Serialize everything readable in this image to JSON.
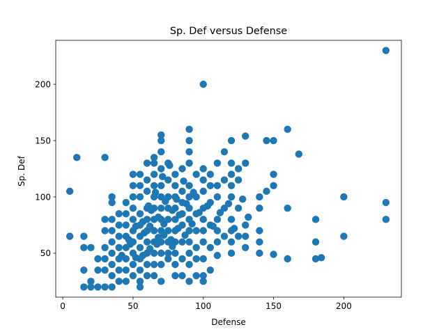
{
  "chart_data": {
    "type": "scatter",
    "title": "Sp. Def versus Defense",
    "xlabel": "Defense",
    "ylabel": "Sp. Def",
    "xlim": [
      -5,
      241
    ],
    "ylim": [
      11,
      239
    ],
    "xticks": [
      0,
      50,
      100,
      150,
      200
    ],
    "yticks": [
      50,
      100,
      150,
      200
    ],
    "xtick_labels": [
      "0",
      "50",
      "100",
      "150",
      "200"
    ],
    "ytick_labels": [
      "50",
      "100",
      "150",
      "200"
    ],
    "grid": false,
    "marker_color": "#1f77b4",
    "points": [
      [
        230,
        230
      ],
      [
        100,
        200
      ],
      [
        230,
        95
      ],
      [
        230,
        80
      ],
      [
        200,
        100
      ],
      [
        200,
        65
      ],
      [
        180,
        80
      ],
      [
        180,
        60
      ],
      [
        180,
        45
      ],
      [
        184,
        46
      ],
      [
        160,
        160
      ],
      [
        168,
        138
      ],
      [
        160,
        90
      ],
      [
        160,
        45
      ],
      [
        150,
        150
      ],
      [
        145,
        150
      ],
      [
        150,
        120
      ],
      [
        150,
        110
      ],
      [
        145,
        105
      ],
      [
        150,
        49
      ],
      [
        140,
        100
      ],
      [
        140,
        90
      ],
      [
        140,
        70
      ],
      [
        140,
        60
      ],
      [
        140,
        50
      ],
      [
        130,
        154
      ],
      [
        130,
        130
      ],
      [
        130,
        75
      ],
      [
        130,
        65
      ],
      [
        130,
        55
      ],
      [
        125,
        125
      ],
      [
        125,
        115
      ],
      [
        125,
        90
      ],
      [
        125,
        65
      ],
      [
        120,
        150
      ],
      [
        120,
        130
      ],
      [
        120,
        120
      ],
      [
        120,
        110
      ],
      [
        120,
        100
      ],
      [
        120,
        80
      ],
      [
        120,
        70
      ],
      [
        120,
        60
      ],
      [
        120,
        50
      ],
      [
        115,
        140
      ],
      [
        115,
        115
      ],
      [
        115,
        90
      ],
      [
        115,
        65
      ],
      [
        110,
        130
      ],
      [
        110,
        110
      ],
      [
        110,
        100
      ],
      [
        110,
        80
      ],
      [
        110,
        70
      ],
      [
        110,
        60
      ],
      [
        110,
        48
      ],
      [
        105,
        120
      ],
      [
        105,
        110
      ],
      [
        105,
        95
      ],
      [
        105,
        75
      ],
      [
        105,
        55
      ],
      [
        105,
        35
      ],
      [
        100,
        125
      ],
      [
        100,
        115
      ],
      [
        100,
        105
      ],
      [
        100,
        90
      ],
      [
        100,
        80
      ],
      [
        100,
        70
      ],
      [
        100,
        60
      ],
      [
        100,
        45
      ],
      [
        100,
        30
      ],
      [
        100,
        25
      ],
      [
        95,
        120
      ],
      [
        95,
        100
      ],
      [
        95,
        85
      ],
      [
        95,
        70
      ],
      [
        95,
        55
      ],
      [
        95,
        45
      ],
      [
        95,
        30
      ],
      [
        90,
        160
      ],
      [
        90,
        150
      ],
      [
        90,
        140
      ],
      [
        90,
        130
      ],
      [
        90,
        110
      ],
      [
        90,
        100
      ],
      [
        90,
        90
      ],
      [
        90,
        80
      ],
      [
        90,
        70
      ],
      [
        90,
        60
      ],
      [
        90,
        50
      ],
      [
        90,
        40
      ],
      [
        90,
        25
      ],
      [
        85,
        125
      ],
      [
        85,
        105
      ],
      [
        85,
        95
      ],
      [
        85,
        85
      ],
      [
        85,
        75
      ],
      [
        85,
        60
      ],
      [
        85,
        45
      ],
      [
        85,
        30
      ],
      [
        80,
        120
      ],
      [
        80,
        110
      ],
      [
        80,
        100
      ],
      [
        80,
        90
      ],
      [
        80,
        80
      ],
      [
        80,
        70
      ],
      [
        80,
        60
      ],
      [
        80,
        50
      ],
      [
        80,
        40
      ],
      [
        80,
        30
      ],
      [
        75,
        130
      ],
      [
        75,
        115
      ],
      [
        75,
        100
      ],
      [
        75,
        90
      ],
      [
        75,
        80
      ],
      [
        75,
        70
      ],
      [
        75,
        60
      ],
      [
        75,
        50
      ],
      [
        75,
        45
      ],
      [
        70,
        155
      ],
      [
        70,
        150
      ],
      [
        70,
        140
      ],
      [
        70,
        125
      ],
      [
        70,
        110
      ],
      [
        70,
        100
      ],
      [
        70,
        90
      ],
      [
        70,
        80
      ],
      [
        70,
        70
      ],
      [
        70,
        60
      ],
      [
        70,
        50
      ],
      [
        70,
        40
      ],
      [
        70,
        25
      ],
      [
        65,
        135
      ],
      [
        65,
        130
      ],
      [
        65,
        120
      ],
      [
        65,
        110
      ],
      [
        65,
        100
      ],
      [
        65,
        90
      ],
      [
        65,
        80
      ],
      [
        65,
        70
      ],
      [
        65,
        60
      ],
      [
        65,
        50
      ],
      [
        65,
        40
      ],
      [
        65,
        30
      ],
      [
        60,
        130
      ],
      [
        60,
        115
      ],
      [
        60,
        105
      ],
      [
        60,
        90
      ],
      [
        60,
        80
      ],
      [
        60,
        70
      ],
      [
        60,
        60
      ],
      [
        60,
        50
      ],
      [
        60,
        40
      ],
      [
        60,
        30
      ],
      [
        55,
        120
      ],
      [
        55,
        110
      ],
      [
        55,
        100
      ],
      [
        55,
        85
      ],
      [
        55,
        75
      ],
      [
        55,
        65
      ],
      [
        55,
        55
      ],
      [
        55,
        45
      ],
      [
        55,
        35
      ],
      [
        55,
        25
      ],
      [
        55,
        20
      ],
      [
        50,
        120
      ],
      [
        50,
        110
      ],
      [
        50,
        100
      ],
      [
        50,
        90
      ],
      [
        50,
        80
      ],
      [
        50,
        70
      ],
      [
        50,
        60
      ],
      [
        50,
        50
      ],
      [
        50,
        40
      ],
      [
        50,
        30
      ],
      [
        45,
        95
      ],
      [
        45,
        85
      ],
      [
        45,
        75
      ],
      [
        45,
        65
      ],
      [
        45,
        55
      ],
      [
        45,
        45
      ],
      [
        45,
        35
      ],
      [
        45,
        25
      ],
      [
        40,
        85
      ],
      [
        40,
        75
      ],
      [
        40,
        65
      ],
      [
        40,
        55
      ],
      [
        40,
        45
      ],
      [
        40,
        35
      ],
      [
        40,
        25
      ],
      [
        35,
        100
      ],
      [
        35,
        95
      ],
      [
        35,
        80
      ],
      [
        35,
        70
      ],
      [
        35,
        60
      ],
      [
        35,
        50
      ],
      [
        35,
        40
      ],
      [
        35,
        30
      ],
      [
        35,
        20
      ],
      [
        30,
        135
      ],
      [
        30,
        80
      ],
      [
        30,
        70
      ],
      [
        30,
        55
      ],
      [
        30,
        45
      ],
      [
        30,
        35
      ],
      [
        30,
        20
      ],
      [
        25,
        45
      ],
      [
        25,
        35
      ],
      [
        25,
        20
      ],
      [
        20,
        55
      ],
      [
        20,
        25
      ],
      [
        20,
        20
      ],
      [
        15,
        65
      ],
      [
        15,
        55
      ],
      [
        15,
        35
      ],
      [
        15,
        20
      ],
      [
        10,
        135
      ],
      [
        5,
        105
      ],
      [
        5,
        65
      ],
      [
        62,
        74
      ],
      [
        68,
        82
      ],
      [
        72,
        66
      ],
      [
        78,
        88
      ],
      [
        82,
        72
      ],
      [
        88,
        94
      ],
      [
        92,
        76
      ],
      [
        58,
        68
      ],
      [
        63,
        88
      ],
      [
        67,
        58
      ],
      [
        73,
        96
      ],
      [
        77,
        62
      ],
      [
        83,
        84
      ],
      [
        87,
        66
      ],
      [
        93,
        104
      ],
      [
        97,
        86
      ],
      [
        103,
        92
      ],
      [
        107,
        74
      ],
      [
        112,
        86
      ],
      [
        118,
        94
      ],
      [
        122,
        72
      ],
      [
        128,
        98
      ],
      [
        132,
        82
      ],
      [
        48,
        58
      ],
      [
        52,
        74
      ],
      [
        57,
        48
      ],
      [
        62,
        54
      ],
      [
        68,
        64
      ],
      [
        72,
        76
      ],
      [
        78,
        56
      ],
      [
        42,
        48
      ],
      [
        47,
        62
      ],
      [
        52,
        46
      ],
      [
        57,
        78
      ],
      [
        61,
        92
      ],
      [
        66,
        104
      ],
      [
        71,
        118
      ],
      [
        76,
        128
      ],
      [
        81,
        98
      ],
      [
        86,
        114
      ]
    ]
  }
}
